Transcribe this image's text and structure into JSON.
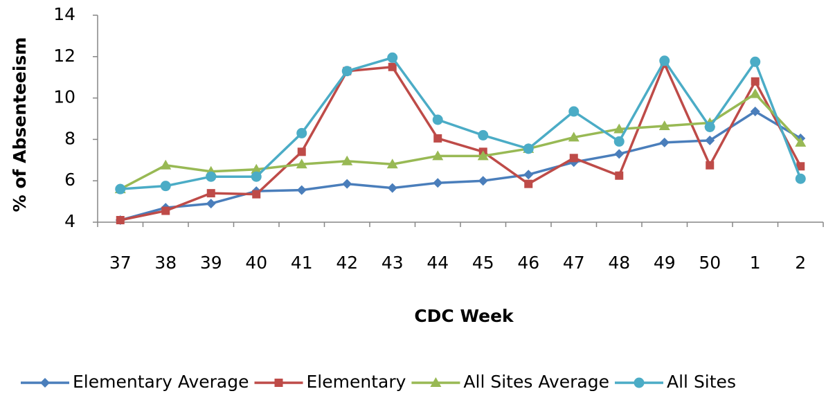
{
  "chart_data": {
    "type": "line",
    "x_label": "CDC Week",
    "y_label": "% of Absenteeism",
    "categories": [
      "37",
      "38",
      "39",
      "40",
      "41",
      "42",
      "43",
      "44",
      "45",
      "46",
      "47",
      "48",
      "49",
      "50",
      "1",
      "2"
    ],
    "series": [
      {
        "name": "Elementary Average",
        "color": "#4a7ebb",
        "marker": "diamond",
        "values": [
          4.1,
          4.7,
          4.9,
          5.5,
          5.55,
          5.85,
          5.65,
          5.9,
          6.0,
          6.3,
          6.9,
          7.3,
          7.85,
          7.95,
          9.35,
          8.05
        ]
      },
      {
        "name": "Elementary",
        "color": "#be4b48",
        "marker": "square",
        "values": [
          4.1,
          4.55,
          5.4,
          5.35,
          7.4,
          11.3,
          11.5,
          8.05,
          7.4,
          5.85,
          7.1,
          6.25,
          11.65,
          6.75,
          10.8,
          6.7
        ]
      },
      {
        "name": "All Sites Average",
        "color": "#98b954",
        "marker": "triangle",
        "values": [
          5.6,
          6.75,
          6.45,
          6.55,
          6.8,
          6.95,
          6.8,
          7.2,
          7.2,
          7.55,
          8.1,
          8.5,
          8.65,
          8.8,
          10.2,
          7.85
        ]
      },
      {
        "name": "All Sites",
        "color": "#4bacc6",
        "marker": "circle",
        "values": [
          5.6,
          5.75,
          6.2,
          6.2,
          8.3,
          11.3,
          11.95,
          8.95,
          8.2,
          7.55,
          9.35,
          7.9,
          11.8,
          8.6,
          11.75,
          6.1
        ]
      }
    ],
    "ylim": [
      4,
      14
    ],
    "yticks": [
      4,
      6,
      8,
      10,
      12,
      14
    ],
    "grid": false,
    "legend": "bottom"
  }
}
